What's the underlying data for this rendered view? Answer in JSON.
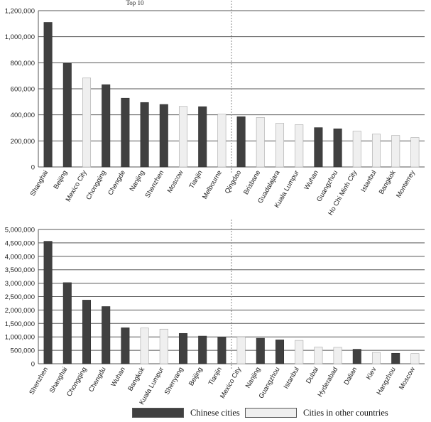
{
  "colors": {
    "chinese": "#404040",
    "other": "#efefef",
    "grid": "#555555",
    "divider": "#888888"
  },
  "legend": {
    "chinese_label": "Chinese cities",
    "other_label": "Cities in other countries"
  },
  "chart_data": [
    {
      "type": "bar",
      "annotation": "Top 10",
      "ylim": [
        0,
        1200000
      ],
      "yticks": [
        0,
        200000,
        400000,
        600000,
        800000,
        1000000,
        1200000
      ],
      "ytick_labels": [
        "0",
        "200,000",
        "400,000",
        "600,000",
        "800,000",
        "1,000,000",
        "1,200,000"
      ],
      "divider_after": 10,
      "categories": [
        "Shanghai",
        "Beijing",
        "Mexico City",
        "Chongqing",
        "Chengde",
        "Nanjing",
        "Shenzhen",
        "Moscow",
        "Tianjin",
        "Melbourne",
        "Qingdao",
        "Brisbane",
        "Guadalajara",
        "Kuala Lumpur",
        "Wuhan",
        "Guangzhou",
        "Ho Chi Minh City",
        "Istanbul",
        "Bangkok",
        "Monterrey"
      ],
      "values": [
        1110000,
        795000,
        683000,
        632000,
        528000,
        495000,
        480000,
        465000,
        463000,
        405000,
        386000,
        380000,
        335000,
        325000,
        302000,
        293000,
        275000,
        252000,
        242000,
        226000
      ],
      "groups": [
        "chinese",
        "chinese",
        "other",
        "chinese",
        "chinese",
        "chinese",
        "chinese",
        "other",
        "chinese",
        "other",
        "chinese",
        "other",
        "other",
        "other",
        "chinese",
        "chinese",
        "other",
        "other",
        "other",
        "other"
      ]
    },
    {
      "type": "bar",
      "ylim": [
        0,
        5000000
      ],
      "yticks": [
        0,
        500000,
        1000000,
        1500000,
        2000000,
        2500000,
        3000000,
        3500000,
        4000000,
        4500000,
        5000000
      ],
      "ytick_labels": [
        "0",
        "500,000",
        "1,000,000",
        "1,500,000",
        "2,000,000",
        "2,500,000",
        "3,000,000",
        "3,500,000",
        "4,000,000",
        "4,500,000",
        "5,000,000"
      ],
      "divider_after": 10,
      "categories": [
        "Shenzhen",
        "Shanghai",
        "Chongqing",
        "Chengdu",
        "Wuhan",
        "Bangkok",
        "Kuala Lumpur",
        "Shenyang",
        "Beijing",
        "Tianjin",
        "Mexico City",
        "Nanjing",
        "Guangzhou",
        "Istanbul",
        "Dubai",
        "Hyderabad",
        "Dalian",
        "Kiev",
        "Hangzhou",
        "Moscow"
      ],
      "values": [
        4560000,
        3020000,
        2370000,
        2130000,
        1340000,
        1330000,
        1290000,
        1130000,
        1030000,
        990000,
        1000000,
        950000,
        890000,
        870000,
        620000,
        610000,
        540000,
        420000,
        390000,
        380000
      ],
      "groups": [
        "chinese",
        "chinese",
        "chinese",
        "chinese",
        "chinese",
        "other",
        "other",
        "chinese",
        "chinese",
        "chinese",
        "other",
        "chinese",
        "chinese",
        "other",
        "other",
        "other",
        "chinese",
        "other",
        "chinese",
        "other"
      ]
    }
  ]
}
